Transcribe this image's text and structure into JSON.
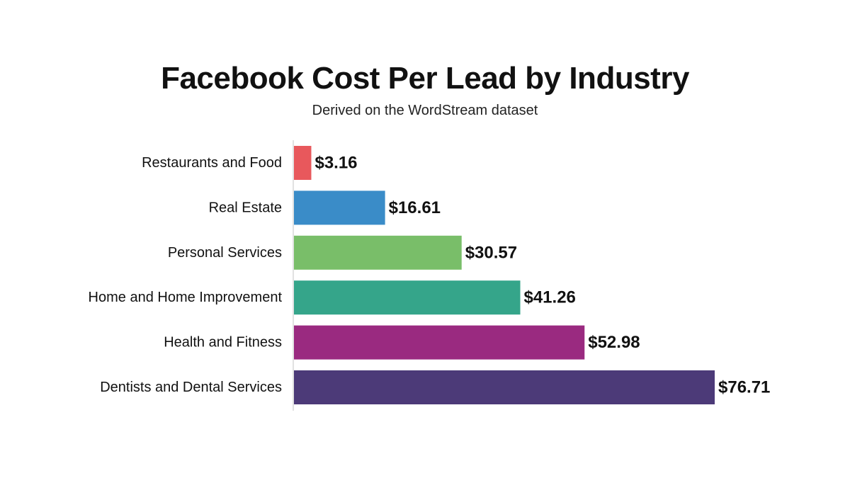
{
  "chart_data": {
    "type": "bar",
    "orientation": "horizontal",
    "title": "Facebook Cost Per Lead by Industry",
    "subtitle": "Derived on the WordStream dataset",
    "categories": [
      "Restaurants and Food",
      "Real Estate",
      "Personal Services",
      "Home and Home Improvement",
      "Health and Fitness",
      "Dentists and Dental Services"
    ],
    "values": [
      3.16,
      16.61,
      30.57,
      41.26,
      52.98,
      76.71
    ],
    "value_labels": [
      "$3.16",
      "$16.61",
      "$30.57",
      "$41.26",
      "$52.98",
      "$76.71"
    ],
    "colors": [
      "#e8585c",
      "#3a8cc8",
      "#79be69",
      "#35a58a",
      "#9a2a80",
      "#4c3a78"
    ],
    "xlim": [
      0,
      76.71
    ],
    "grid": false,
    "legend": "none"
  }
}
